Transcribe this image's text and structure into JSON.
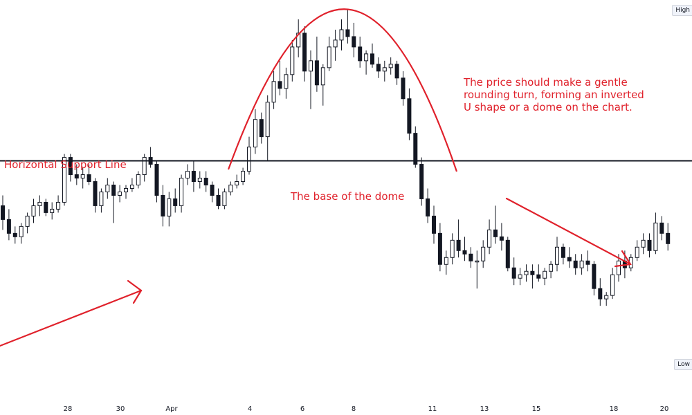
{
  "annotations": {
    "support_label": "Horizontal Support Line",
    "base_label": "The base of the dome",
    "description": [
      "The price should make a gentle",
      "rounding turn, forming an inverted",
      "U shape or a dome on the chart."
    ]
  },
  "price_scale": {
    "high_label": "High",
    "low_label": "Low"
  },
  "colors": {
    "annotation": "#e0212b",
    "candle": "#131722",
    "support_line": "#131722"
  },
  "chart_data": {
    "type": "candlestick",
    "x_tick_labels": [
      "28",
      "30",
      "Apr",
      "4",
      "6",
      "8",
      "11",
      "13",
      "15",
      "18",
      "20"
    ],
    "support_level": 56,
    "candles": [
      {
        "o": 43,
        "h": 46,
        "l": 36,
        "c": 39
      },
      {
        "o": 39,
        "h": 42,
        "l": 33,
        "c": 35
      },
      {
        "o": 35,
        "h": 37,
        "l": 32,
        "c": 34
      },
      {
        "o": 34,
        "h": 38,
        "l": 32,
        "c": 37
      },
      {
        "o": 37,
        "h": 41,
        "l": 35,
        "c": 40
      },
      {
        "o": 40,
        "h": 45,
        "l": 38,
        "c": 43
      },
      {
        "o": 43,
        "h": 46,
        "l": 40,
        "c": 44
      },
      {
        "o": 44,
        "h": 45,
        "l": 40,
        "c": 41
      },
      {
        "o": 41,
        "h": 44,
        "l": 39,
        "c": 42
      },
      {
        "o": 42,
        "h": 46,
        "l": 41,
        "c": 44
      },
      {
        "o": 44,
        "h": 58,
        "l": 43,
        "c": 57
      },
      {
        "o": 57,
        "h": 58,
        "l": 50,
        "c": 52
      },
      {
        "o": 52,
        "h": 55,
        "l": 49,
        "c": 51
      },
      {
        "o": 51,
        "h": 54,
        "l": 48,
        "c": 52
      },
      {
        "o": 52,
        "h": 55,
        "l": 49,
        "c": 50
      },
      {
        "o": 50,
        "h": 51,
        "l": 41,
        "c": 43
      },
      {
        "o": 43,
        "h": 48,
        "l": 41,
        "c": 47
      },
      {
        "o": 47,
        "h": 51,
        "l": 45,
        "c": 49
      },
      {
        "o": 49,
        "h": 50,
        "l": 38,
        "c": 46
      },
      {
        "o": 46,
        "h": 49,
        "l": 44,
        "c": 47
      },
      {
        "o": 47,
        "h": 49,
        "l": 45,
        "c": 48
      },
      {
        "o": 48,
        "h": 51,
        "l": 47,
        "c": 49
      },
      {
        "o": 49,
        "h": 53,
        "l": 48,
        "c": 52
      },
      {
        "o": 52,
        "h": 58,
        "l": 50,
        "c": 57
      },
      {
        "o": 57,
        "h": 60,
        "l": 54,
        "c": 55
      },
      {
        "o": 55,
        "h": 56,
        "l": 44,
        "c": 46
      },
      {
        "o": 46,
        "h": 49,
        "l": 37,
        "c": 40
      },
      {
        "o": 40,
        "h": 47,
        "l": 37,
        "c": 45
      },
      {
        "o": 45,
        "h": 48,
        "l": 41,
        "c": 43
      },
      {
        "o": 43,
        "h": 52,
        "l": 41,
        "c": 51
      },
      {
        "o": 51,
        "h": 55,
        "l": 49,
        "c": 53
      },
      {
        "o": 53,
        "h": 56,
        "l": 47,
        "c": 50
      },
      {
        "o": 50,
        "h": 53,
        "l": 48,
        "c": 51
      },
      {
        "o": 51,
        "h": 53,
        "l": 47,
        "c": 49
      },
      {
        "o": 49,
        "h": 50,
        "l": 44,
        "c": 46
      },
      {
        "o": 46,
        "h": 48,
        "l": 42,
        "c": 43
      },
      {
        "o": 43,
        "h": 48,
        "l": 42,
        "c": 47
      },
      {
        "o": 47,
        "h": 50,
        "l": 46,
        "c": 49
      },
      {
        "o": 49,
        "h": 52,
        "l": 48,
        "c": 50
      },
      {
        "o": 50,
        "h": 54,
        "l": 49,
        "c": 53
      },
      {
        "o": 53,
        "h": 63,
        "l": 52,
        "c": 60
      },
      {
        "o": 60,
        "h": 71,
        "l": 58,
        "c": 68
      },
      {
        "o": 68,
        "h": 70,
        "l": 61,
        "c": 63
      },
      {
        "o": 63,
        "h": 75,
        "l": 56,
        "c": 73
      },
      {
        "o": 73,
        "h": 82,
        "l": 71,
        "c": 79
      },
      {
        "o": 79,
        "h": 85,
        "l": 75,
        "c": 77
      },
      {
        "o": 77,
        "h": 83,
        "l": 74,
        "c": 81
      },
      {
        "o": 81,
        "h": 91,
        "l": 79,
        "c": 89
      },
      {
        "o": 89,
        "h": 97,
        "l": 86,
        "c": 93
      },
      {
        "o": 93,
        "h": 95,
        "l": 79,
        "c": 82
      },
      {
        "o": 82,
        "h": 88,
        "l": 71,
        "c": 85
      },
      {
        "o": 85,
        "h": 92,
        "l": 76,
        "c": 78
      },
      {
        "o": 78,
        "h": 84,
        "l": 72,
        "c": 83
      },
      {
        "o": 83,
        "h": 92,
        "l": 82,
        "c": 89
      },
      {
        "o": 89,
        "h": 94,
        "l": 85,
        "c": 91
      },
      {
        "o": 91,
        "h": 97,
        "l": 88,
        "c": 94
      },
      {
        "o": 94,
        "h": 100,
        "l": 90,
        "c": 92
      },
      {
        "o": 92,
        "h": 96,
        "l": 86,
        "c": 89
      },
      {
        "o": 89,
        "h": 92,
        "l": 83,
        "c": 85
      },
      {
        "o": 85,
        "h": 88,
        "l": 81,
        "c": 87
      },
      {
        "o": 87,
        "h": 90,
        "l": 83,
        "c": 84
      },
      {
        "o": 84,
        "h": 86,
        "l": 80,
        "c": 82
      },
      {
        "o": 82,
        "h": 85,
        "l": 79,
        "c": 83
      },
      {
        "o": 83,
        "h": 86,
        "l": 81,
        "c": 84
      },
      {
        "o": 84,
        "h": 85,
        "l": 78,
        "c": 80
      },
      {
        "o": 80,
        "h": 82,
        "l": 72,
        "c": 74
      },
      {
        "o": 74,
        "h": 77,
        "l": 62,
        "c": 64
      },
      {
        "o": 64,
        "h": 66,
        "l": 54,
        "c": 55
      },
      {
        "o": 55,
        "h": 57,
        "l": 43,
        "c": 45
      },
      {
        "o": 45,
        "h": 48,
        "l": 38,
        "c": 40
      },
      {
        "o": 40,
        "h": 43,
        "l": 32,
        "c": 35
      },
      {
        "o": 35,
        "h": 38,
        "l": 24,
        "c": 26
      },
      {
        "o": 26,
        "h": 30,
        "l": 23,
        "c": 28
      },
      {
        "o": 28,
        "h": 35,
        "l": 26,
        "c": 33
      },
      {
        "o": 33,
        "h": 39,
        "l": 28,
        "c": 30
      },
      {
        "o": 30,
        "h": 34,
        "l": 27,
        "c": 29
      },
      {
        "o": 29,
        "h": 31,
        "l": 25,
        "c": 27
      },
      {
        "o": 27,
        "h": 30,
        "l": 19,
        "c": 27
      },
      {
        "o": 27,
        "h": 33,
        "l": 25,
        "c": 31
      },
      {
        "o": 31,
        "h": 39,
        "l": 29,
        "c": 36
      },
      {
        "o": 36,
        "h": 43,
        "l": 32,
        "c": 34
      },
      {
        "o": 34,
        "h": 38,
        "l": 30,
        "c": 33
      },
      {
        "o": 33,
        "h": 34,
        "l": 24,
        "c": 25
      },
      {
        "o": 25,
        "h": 28,
        "l": 20,
        "c": 22
      },
      {
        "o": 22,
        "h": 25,
        "l": 20,
        "c": 23
      },
      {
        "o": 23,
        "h": 26,
        "l": 21,
        "c": 24
      },
      {
        "o": 24,
        "h": 26,
        "l": 19,
        "c": 23
      },
      {
        "o": 23,
        "h": 26,
        "l": 21,
        "c": 22
      },
      {
        "o": 22,
        "h": 25,
        "l": 20,
        "c": 24
      },
      {
        "o": 24,
        "h": 27,
        "l": 22,
        "c": 26
      },
      {
        "o": 26,
        "h": 34,
        "l": 24,
        "c": 31
      },
      {
        "o": 31,
        "h": 32,
        "l": 26,
        "c": 28
      },
      {
        "o": 28,
        "h": 31,
        "l": 25,
        "c": 27
      },
      {
        "o": 27,
        "h": 29,
        "l": 23,
        "c": 25
      },
      {
        "o": 25,
        "h": 29,
        "l": 23,
        "c": 27
      },
      {
        "o": 27,
        "h": 30,
        "l": 24,
        "c": 26
      },
      {
        "o": 26,
        "h": 27,
        "l": 17,
        "c": 19
      },
      {
        "o": 19,
        "h": 22,
        "l": 14,
        "c": 16
      },
      {
        "o": 16,
        "h": 18,
        "l": 14,
        "c": 17
      },
      {
        "o": 17,
        "h": 25,
        "l": 16,
        "c": 23
      },
      {
        "o": 23,
        "h": 29,
        "l": 21,
        "c": 27
      },
      {
        "o": 27,
        "h": 30,
        "l": 22,
        "c": 25
      },
      {
        "o": 25,
        "h": 29,
        "l": 24,
        "c": 28
      },
      {
        "o": 28,
        "h": 33,
        "l": 27,
        "c": 31
      },
      {
        "o": 31,
        "h": 35,
        "l": 29,
        "c": 33
      },
      {
        "o": 33,
        "h": 35,
        "l": 28,
        "c": 30
      },
      {
        "o": 30,
        "h": 41,
        "l": 29,
        "c": 38
      },
      {
        "o": 38,
        "h": 40,
        "l": 33,
        "c": 35
      },
      {
        "o": 35,
        "h": 38,
        "l": 30,
        "c": 32
      }
    ]
  }
}
